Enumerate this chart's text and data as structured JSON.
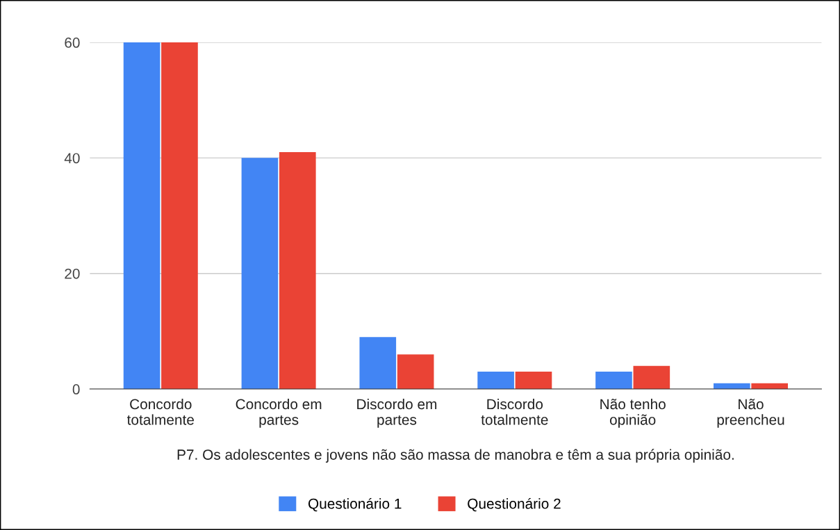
{
  "chart_data": {
    "type": "bar",
    "xlabel": "P7. Os adolescentes e jovens não são massa de manobra e têm a sua própria opinião.",
    "categories": [
      "Concordo\ntotalmente",
      "Concordo em\npartes",
      "Discordo em\npartes",
      "Discordo\ntotalmente",
      "Não tenho\nopinião",
      "Não\npreencheu"
    ],
    "series": [
      {
        "name": "Questionário 1",
        "color": "#4285f4",
        "values": [
          60,
          40,
          9,
          3,
          3,
          1
        ]
      },
      {
        "name": "Questionário 2",
        "color": "#ea4335",
        "values": [
          60,
          41,
          6,
          3,
          4,
          1
        ]
      }
    ],
    "ylim": [
      0,
      60
    ],
    "yticks": [
      0,
      20,
      40,
      60
    ],
    "grid": "y",
    "legend": "bottom"
  }
}
